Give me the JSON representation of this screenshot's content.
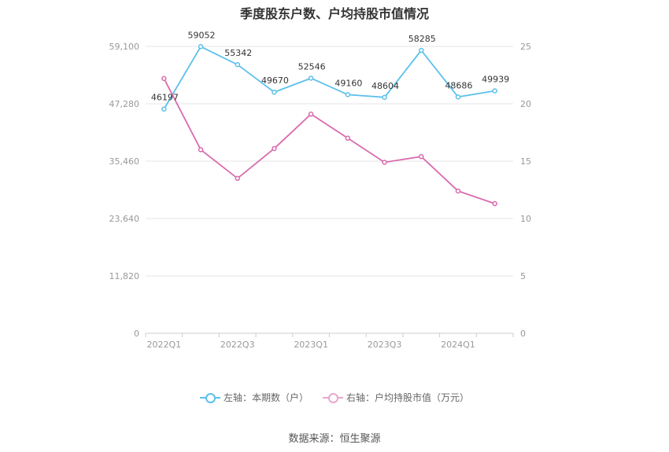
{
  "chart_data": {
    "type": "line",
    "title": "季度股东户数、户均持股市值情况",
    "categories": [
      "2022Q1",
      "2022Q2",
      "2022Q3",
      "2022Q4",
      "2023Q1",
      "2023Q2",
      "2023Q3",
      "2023Q4",
      "2024Q1",
      "2024Q2"
    ],
    "x_tick_labels": [
      "2022Q1",
      "2022Q3",
      "2023Q1",
      "2023Q3",
      "2024Q1"
    ],
    "left_axis": {
      "ticks": [
        "0",
        "11,820",
        "23,640",
        "35,460",
        "47,280",
        "59,100"
      ],
      "min": 0,
      "max": 59100
    },
    "right_axis": {
      "ticks": [
        "0",
        "5",
        "10",
        "15",
        "20",
        "25"
      ],
      "min": 0,
      "max": 25
    },
    "series": [
      {
        "name": "左轴：本期数（户）",
        "axis": "left",
        "color": "#5bc0eb",
        "values": [
          46197,
          59052,
          55342,
          49670,
          52546,
          49160,
          48604,
          58285,
          48686,
          49939
        ],
        "labels": [
          "46197",
          "59052",
          "55342",
          "49670",
          "52546",
          "49160",
          "48604",
          "58285",
          "48686",
          "49939"
        ]
      },
      {
        "name": "右轴：户均持股市值（万元）",
        "axis": "right",
        "color": "#d96aae",
        "values": [
          22.2,
          16.0,
          13.5,
          16.1,
          19.1,
          17.0,
          14.9,
          15.4,
          12.4,
          11.3
        ]
      }
    ],
    "grid": true,
    "legend": "bottom-center"
  },
  "source": "数据来源：恒生聚源"
}
